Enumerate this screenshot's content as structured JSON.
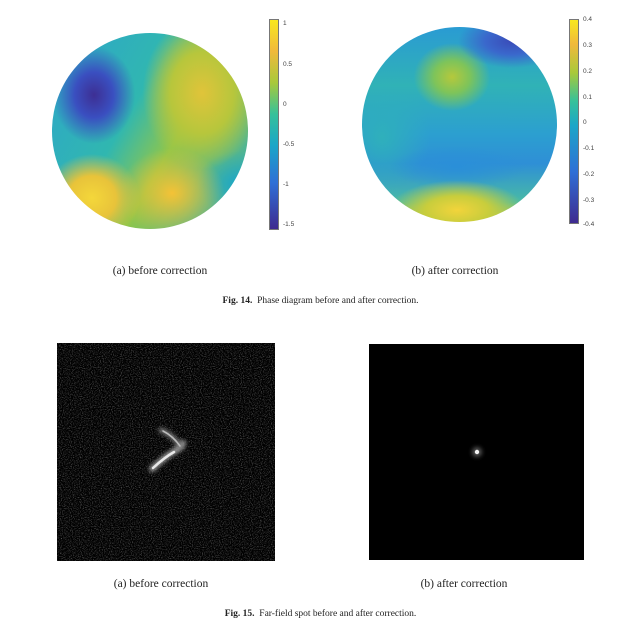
{
  "figure14": {
    "caption_label": "Fig. 14.",
    "caption_text": "Phase diagram before and after correction.",
    "panel_a": {
      "label": "(a) before correction",
      "colorbar_ticks": [
        "1",
        "0.5",
        "0",
        "-0.5",
        "-1",
        "-1.5"
      ]
    },
    "panel_b": {
      "label": "(b) after correction",
      "colorbar_ticks": [
        "0.4",
        "0.3",
        "0.2",
        "0.1",
        "0",
        "-0.1",
        "-0.2",
        "-0.3",
        "-0.4"
      ]
    },
    "colormap": [
      "#3e2a8f",
      "#2f6fd6",
      "#1ba6c8",
      "#36c19a",
      "#a8c93a",
      "#f0b93b",
      "#f8e81f"
    ]
  },
  "figure15": {
    "caption_label": "Fig. 15.",
    "caption_text": "Far-field spot before and after correction.",
    "panel_a": {
      "label": "(a) before correction"
    },
    "panel_b": {
      "label": "(b) after correction"
    }
  }
}
